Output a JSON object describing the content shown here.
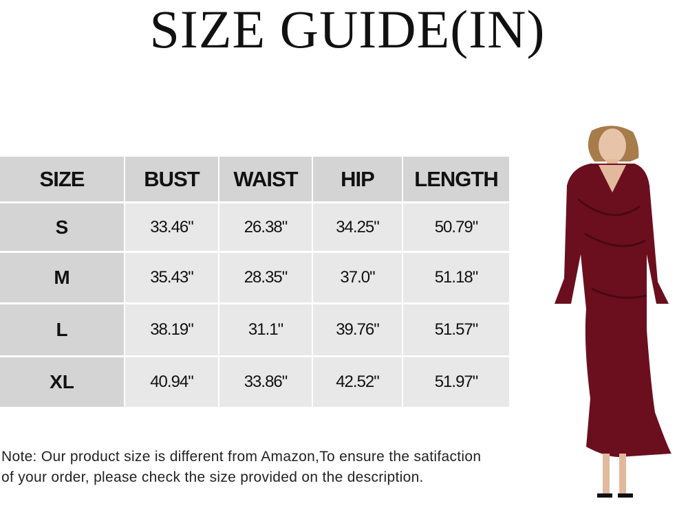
{
  "title": "SIZE GUIDE(IN)",
  "table": {
    "headers": [
      "SIZE",
      "BUST",
      "WAIST",
      "HIP",
      "LENGTH"
    ],
    "rows": [
      [
        "S",
        "33.46\"",
        "26.38\"",
        "34.25\"",
        "50.79\""
      ],
      [
        "M",
        "35.43\"",
        "28.35\"",
        "37.0\"",
        "51.18\""
      ],
      [
        "L",
        "38.19\"",
        "31.1\"",
        "39.76\"",
        "51.57\""
      ],
      [
        "XL",
        "40.94\"",
        "33.86\"",
        "42.52\"",
        "51.97\""
      ]
    ]
  },
  "note": "Note: Our product size is different from Amazon,To ensure the satifaction of your order, please check the size provided on the description.",
  "colors": {
    "header_bg": "#d4d4d4",
    "cell_bg": "#e8e8e8",
    "dress": "#6b0f1f"
  }
}
